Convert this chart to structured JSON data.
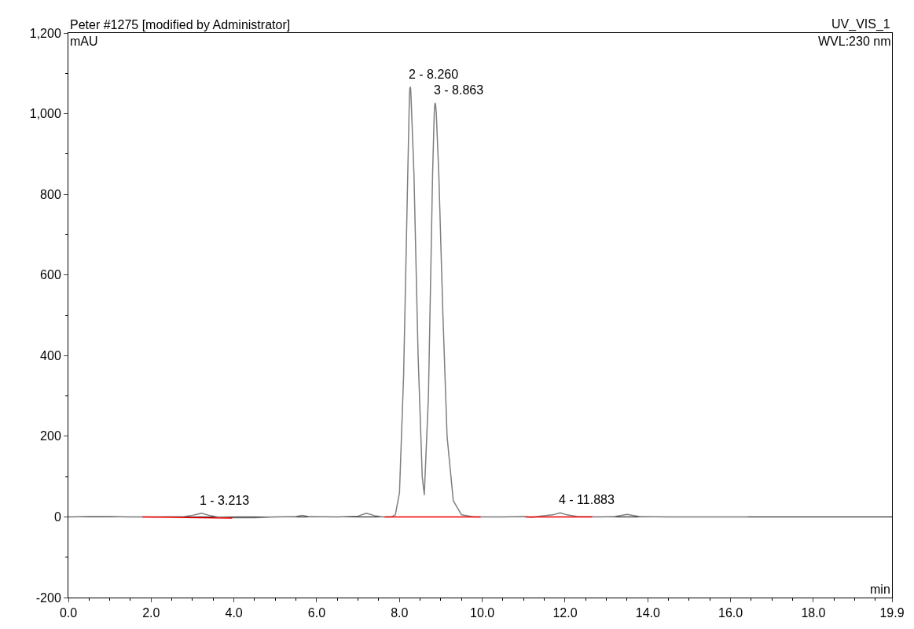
{
  "chart_data": {
    "type": "line",
    "title": "Peter #1275 [modified by Administrator]",
    "subtitle": "UV_VIS_1",
    "xlabel": "min",
    "ylabel": "mAU",
    "annotations": [
      "WVL:230 nm",
      {
        "text": "1 - 3.213",
        "x": 3.213,
        "y": 9
      },
      {
        "text": "2 - 8.260",
        "x": 8.26,
        "y": 1066
      },
      {
        "text": "3 - 8.863",
        "x": 8.863,
        "y": 1026
      },
      {
        "text": "4 - 11.883",
        "x": 11.883,
        "y": 10
      }
    ],
    "series": [
      {
        "color": "#7f7f7f",
        "x": [
          0,
          0.5,
          1.0,
          1.5,
          2.0,
          2.8,
          3.0,
          3.213,
          3.4,
          3.6,
          4.0,
          4.5,
          5.0,
          5.5,
          5.65,
          5.8,
          6.5,
          7.0,
          7.2,
          7.4,
          7.6,
          7.8,
          7.9,
          8.0,
          8.1,
          8.2,
          8.24,
          8.25,
          8.26,
          8.27,
          8.28,
          8.35,
          8.45,
          8.55,
          8.6,
          8.7,
          8.8,
          8.84,
          8.853,
          8.863,
          8.873,
          8.89,
          8.95,
          9.05,
          9.15,
          9.3,
          9.5,
          9.8,
          10.5,
          11.0,
          11.2,
          11.4,
          11.7,
          11.883,
          12.05,
          12.3,
          12.8,
          13.2,
          13.5,
          13.8,
          14.5,
          16.4
        ],
        "values": [
          0,
          1,
          1,
          0,
          0,
          1,
          4,
          9,
          4,
          0,
          -2,
          -2,
          0,
          1,
          4,
          1,
          0,
          2,
          9,
          3,
          0,
          0,
          5,
          60,
          350,
          850,
          1040,
          1062,
          1066,
          1062,
          1040,
          850,
          400,
          100,
          55,
          300,
          850,
          1000,
          1022,
          1026,
          1022,
          1000,
          850,
          500,
          200,
          40,
          5,
          0,
          0,
          1,
          -1,
          2,
          5,
          10,
          5,
          1,
          0,
          1,
          6,
          1,
          0,
          0
        ]
      },
      {
        "color": "#ff0000",
        "x": [
          1.8,
          3.95
        ],
        "values": [
          0,
          -3
        ]
      },
      {
        "color": "#ff0000",
        "x": [
          7.65,
          9.95
        ],
        "values": [
          0,
          0
        ]
      },
      {
        "color": "#ff0000",
        "x": [
          11.05,
          12.65
        ],
        "values": [
          0,
          0
        ]
      }
    ],
    "ref_lines": [
      {
        "axis": "y",
        "value": 0,
        "color": "#000000"
      }
    ],
    "xlim": [
      0,
      19.9
    ],
    "xticks": [
      {
        "value": 0,
        "label": "0.0"
      },
      {
        "value": 2,
        "label": "2.0"
      },
      {
        "value": 4,
        "label": "4.0"
      },
      {
        "value": 6,
        "label": "6.0"
      },
      {
        "value": 8,
        "label": "8.0"
      },
      {
        "value": 10,
        "label": "10.0"
      },
      {
        "value": 12,
        "label": "12.0"
      },
      {
        "value": 14,
        "label": "14.0"
      },
      {
        "value": 16,
        "label": "16.0"
      },
      {
        "value": 18,
        "label": "18.0"
      },
      {
        "value": 19.9,
        "label": "19.9"
      }
    ],
    "ylim": [
      -200,
      1200
    ],
    "yticks": [
      -200,
      0,
      200,
      400,
      600,
      800,
      {
        "value": 1000,
        "label": "1,000"
      },
      {
        "value": 1200,
        "label": "1,200"
      }
    ],
    "grid": false,
    "marker": "none",
    "line_style": "solid"
  }
}
